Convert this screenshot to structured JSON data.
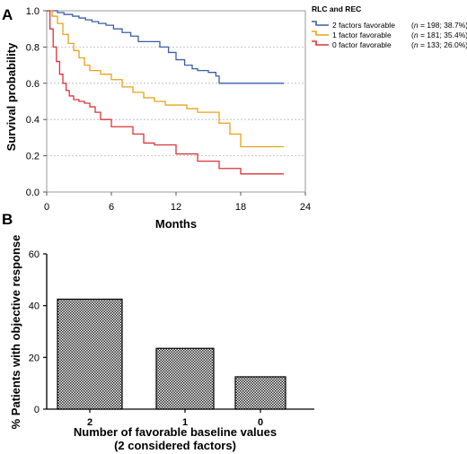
{
  "chart_data": [
    {
      "panel": "A",
      "type": "line",
      "xlabel": "Months",
      "ylabel": "Survival probability",
      "xlim": [
        0,
        24
      ],
      "ylim": [
        0,
        1.0
      ],
      "xticks": [
        0,
        6,
        12,
        18,
        24
      ],
      "yticks": [
        0.0,
        0.2,
        0.4,
        0.6,
        0.8,
        1.0
      ],
      "ytick_labels": [
        "0.0",
        "0.2",
        "0.4",
        "0.6",
        "0.8",
        "1.0"
      ],
      "grid": "horizontal dashed",
      "legend": {
        "title": "RLC and REC",
        "placement": "top-right",
        "entries": [
          {
            "label": "2 factors favorable",
            "stat_n": "n",
            "stat_rest": " = 198; 38.7%)",
            "color": "#3b5ea8"
          },
          {
            "label": "1 factor  favorable",
            "stat_n": "n",
            "stat_rest": " = 181; 35.4%)",
            "color": "#e8a317"
          },
          {
            "label": "0 factor favorable",
            "stat_n": "n",
            "stat_rest": " = 133; 26.0%)",
            "color": "#d9353a"
          }
        ]
      },
      "series": [
        {
          "name": "2 factors favorable",
          "color": "#3b5ea8",
          "x": [
            0,
            1.0,
            1.6,
            2.4,
            3.0,
            3.6,
            4.2,
            4.8,
            5.5,
            6.2,
            7.0,
            7.8,
            8.5,
            10.5,
            11.3,
            12.0,
            12.8,
            13.5,
            14.0,
            15.0,
            15.7,
            16.0,
            22.0
          ],
          "y": [
            1.0,
            0.99,
            0.98,
            0.97,
            0.96,
            0.95,
            0.94,
            0.93,
            0.92,
            0.9,
            0.88,
            0.86,
            0.83,
            0.8,
            0.77,
            0.73,
            0.7,
            0.68,
            0.67,
            0.66,
            0.64,
            0.6,
            0.6
          ]
        },
        {
          "name": "1 factor favorable",
          "color": "#e8a317",
          "x": [
            0,
            0.5,
            1.0,
            1.5,
            2.0,
            2.5,
            3.0,
            3.5,
            4.0,
            5.0,
            6.0,
            7.0,
            8.0,
            9.0,
            10.0,
            11.0,
            13.0,
            14.0,
            16.0,
            17.0,
            18.0,
            19.0,
            22.0
          ],
          "y": [
            1.0,
            0.97,
            0.93,
            0.87,
            0.82,
            0.78,
            0.74,
            0.7,
            0.67,
            0.65,
            0.62,
            0.58,
            0.55,
            0.52,
            0.5,
            0.48,
            0.46,
            0.44,
            0.38,
            0.32,
            0.25,
            0.25,
            0.25
          ]
        },
        {
          "name": "0 factor favorable",
          "color": "#d9353a",
          "x": [
            0,
            0.3,
            0.6,
            0.9,
            1.2,
            1.5,
            1.8,
            2.1,
            2.5,
            3.0,
            3.5,
            4.0,
            4.5,
            5.0,
            6.0,
            8.0,
            9.0,
            10.0,
            12.0,
            14.0,
            16.0,
            18.0,
            22.0
          ],
          "y": [
            1.0,
            0.9,
            0.8,
            0.72,
            0.65,
            0.6,
            0.56,
            0.53,
            0.51,
            0.5,
            0.49,
            0.47,
            0.44,
            0.4,
            0.36,
            0.32,
            0.27,
            0.26,
            0.21,
            0.17,
            0.13,
            0.1,
            0.1
          ]
        }
      ]
    },
    {
      "panel": "B",
      "type": "bar",
      "categories": [
        "2",
        "1",
        "0"
      ],
      "values": [
        42.5,
        23.5,
        12.5
      ],
      "xlabel_line1": "Number of favorable baseline values",
      "xlabel_line2": "(2 considered factors)",
      "ylabel": "% Patients with objective response",
      "ylim": [
        0,
        60
      ],
      "yticks": [
        0,
        20,
        40,
        60
      ],
      "fill": "checkered"
    }
  ]
}
